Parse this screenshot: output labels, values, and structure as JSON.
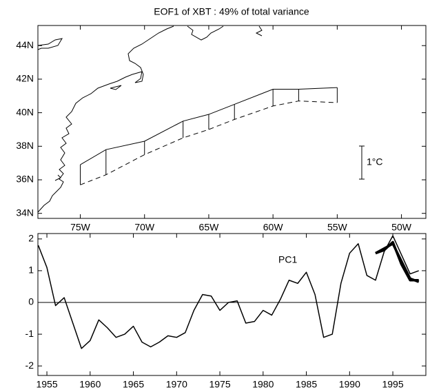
{
  "chart_data": [
    {
      "type": "map",
      "title": "EOF1 of XBT : 49% of total variance",
      "xlim": [
        -78.3,
        -48.1
      ],
      "ylim": [
        33.7,
        45.2
      ],
      "xticks": [
        {
          "value": -75,
          "label": "75W"
        },
        {
          "value": -70,
          "label": "70W"
        },
        {
          "value": -65,
          "label": "65W"
        },
        {
          "value": -60,
          "label": "60W"
        },
        {
          "value": -55,
          "label": "55W"
        },
        {
          "value": -50,
          "label": "50W"
        }
      ],
      "yticks": [
        {
          "value": 34,
          "label": "34N"
        },
        {
          "value": 36,
          "label": "36N"
        },
        {
          "value": 38,
          "label": "38N"
        },
        {
          "value": 40,
          "label": "40N"
        },
        {
          "value": 42,
          "label": "42N"
        },
        {
          "value": 44,
          "label": "44N"
        }
      ],
      "series": [
        {
          "color": "#000000",
          "linestyle": "solid",
          "x": [
            -75,
            -73,
            -70,
            -67,
            -65,
            -63,
            -60,
            -58,
            -55
          ],
          "y": [
            36.9,
            37.8,
            38.3,
            39.5,
            39.9,
            40.5,
            41.4,
            41.4,
            41.5
          ]
        },
        {
          "color": "#000000",
          "linestyle": "dashed",
          "x": [
            -75,
            -73,
            -70,
            -67,
            -65,
            -63,
            -60,
            -58,
            -55
          ],
          "y": [
            35.7,
            36.3,
            37.5,
            38.5,
            39.0,
            39.6,
            40.4,
            40.7,
            40.6
          ]
        }
      ],
      "connectors": true,
      "scale_label": "1°C"
    },
    {
      "type": "line",
      "xlim": [
        1953.96,
        1998.82
      ],
      "ylim": [
        -2.3,
        2.17
      ],
      "xticks": [
        1955,
        1960,
        1965,
        1970,
        1975,
        1980,
        1985,
        1990,
        1995
      ],
      "yticks": [
        -2,
        -1,
        0,
        1,
        2
      ],
      "reference_line": 0,
      "annotations": [
        "PC1"
      ],
      "series": [
        {
          "color": "#000000",
          "width": 1.5,
          "x": [
            1954,
            1955,
            1956,
            1957,
            1958,
            1959,
            1960,
            1961,
            1962,
            1963,
            1964,
            1965,
            1966,
            1967,
            1968,
            1969,
            1970,
            1971,
            1972,
            1973,
            1974,
            1975,
            1976,
            1977,
            1978,
            1979,
            1980,
            1981,
            1982,
            1983,
            1984,
            1985,
            1986,
            1987,
            1988,
            1989,
            1990,
            1991,
            1992,
            1993,
            1994,
            1995,
            1996,
            1997,
            1998
          ],
          "values": [
            1.8,
            1.1,
            -0.1,
            0.15,
            -0.65,
            -1.45,
            -1.2,
            -0.55,
            -0.8,
            -1.1,
            -1.0,
            -0.75,
            -1.25,
            -1.4,
            -1.25,
            -1.05,
            -1.1,
            -0.95,
            -0.25,
            0.25,
            0.2,
            -0.25,
            0.0,
            0.05,
            -0.65,
            -0.6,
            -0.25,
            -0.4,
            0.1,
            0.7,
            0.6,
            0.95,
            0.25,
            -1.1,
            -1.0,
            0.6,
            1.55,
            1.85,
            0.85,
            0.7,
            1.6,
            2.1,
            1.5,
            0.9,
            1.0
          ]
        },
        {
          "color": "#000000",
          "width": 3.5,
          "x": [
            1993,
            1994,
            1995,
            1996,
            1997,
            1998
          ],
          "values": [
            1.55,
            1.65,
            1.9,
            1.2,
            0.7,
            0.7
          ]
        },
        {
          "color": "#000000",
          "width": 3.5,
          "x": [
            1993,
            1994,
            1995,
            1996,
            1997,
            1998
          ],
          "values": [
            1.55,
            1.7,
            1.85,
            1.3,
            0.75,
            0.65
          ]
        }
      ]
    }
  ]
}
